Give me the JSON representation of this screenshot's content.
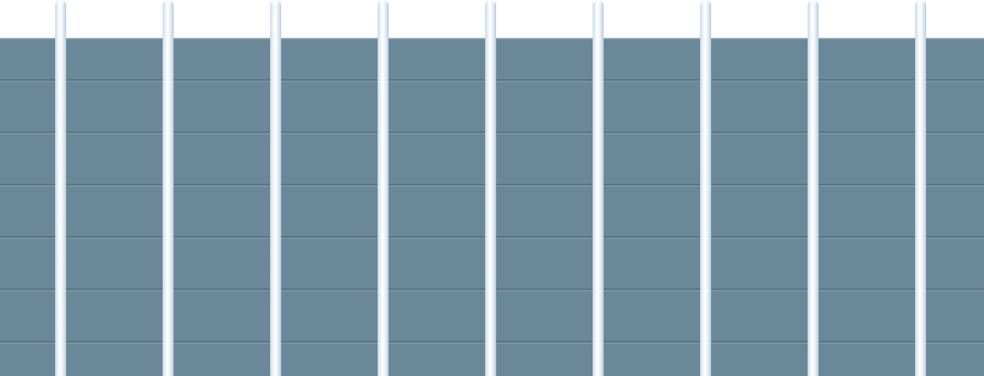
{
  "scene": {
    "panel_color": "#6b8899",
    "seam_color": "#56707f",
    "post_color": "#e8f0f7",
    "background": "#ffffff",
    "post_count": 9,
    "panel_row_count": 7
  }
}
